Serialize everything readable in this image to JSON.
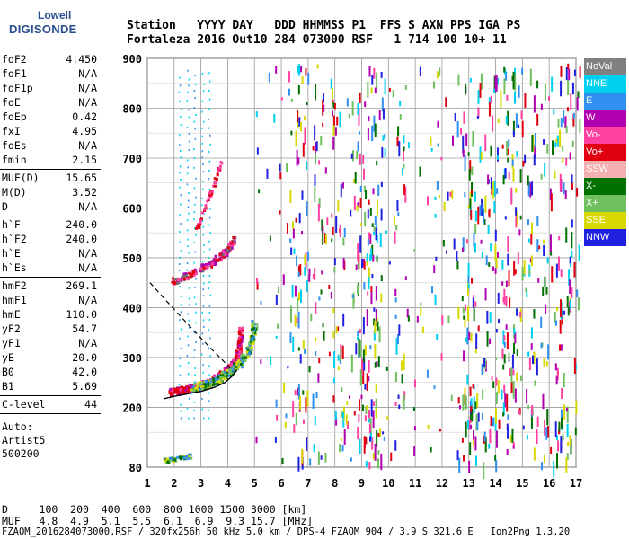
{
  "logo": {
    "line1": "Lowell",
    "line2": "DIGISONDE"
  },
  "header": {
    "line1": "Station   YYYY DAY   DDD HHMMSS P1  FFS S AXN PPS IGA PS",
    "line2": "Fortaleza 2016 Out10 284 073000 RSF   1 714 100 10+ 11"
  },
  "params_groups": [
    [
      [
        "foF2",
        "4.450"
      ],
      [
        "foF1",
        "N/A"
      ],
      [
        "foF1p",
        "N/A"
      ],
      [
        "foE",
        "N/A"
      ],
      [
        "foEp",
        "0.42"
      ],
      [
        "fxI",
        "4.95"
      ],
      [
        "foEs",
        "N/A"
      ],
      [
        "fmin",
        "2.15"
      ]
    ],
    [
      [
        "MUF(D)",
        "15.65"
      ],
      [
        "M(D)",
        "3.52"
      ],
      [
        "D",
        "N/A"
      ]
    ],
    [
      [
        "h`F",
        "240.0"
      ],
      [
        "h`F2",
        "240.0"
      ],
      [
        "h`E",
        "N/A"
      ],
      [
        "h`Es",
        "N/A"
      ]
    ],
    [
      [
        "hmF2",
        "269.1"
      ],
      [
        "hmF1",
        "N/A"
      ],
      [
        "hmE",
        "110.0"
      ],
      [
        "yF2",
        "54.7"
      ],
      [
        "yF1",
        "N/A"
      ],
      [
        "yE",
        "20.0"
      ],
      [
        "B0",
        "42.0"
      ],
      [
        "B1",
        "5.69"
      ]
    ],
    [
      [
        "C-level",
        "44"
      ]
    ]
  ],
  "auto": {
    "line1": "Auto:",
    "line2": "Artist5",
    "line3": "500200"
  },
  "legend": [
    {
      "label": "NoVal",
      "color": "#808080"
    },
    {
      "label": "NNE",
      "color": "#00d0f0"
    },
    {
      "label": "E",
      "color": "#3090f0"
    },
    {
      "label": "W",
      "color": "#b000b0"
    },
    {
      "label": "Vo-",
      "color": "#ff40a0"
    },
    {
      "label": "Vo+",
      "color": "#e00010"
    },
    {
      "label": "SSW",
      "color": "#f4b0b0"
    },
    {
      "label": "X-",
      "color": "#007000"
    },
    {
      "label": "X+",
      "color": "#70c060"
    },
    {
      "label": "SSE",
      "color": "#d8d800"
    },
    {
      "label": "NNW",
      "color": "#2020e0"
    }
  ],
  "footer": {
    "line1": "D     100  200  400  600  800 1000 1500 3000 [km]",
    "line2": "MUF   4.8  4.9  5.1  5.5  6.1  6.9  9.3 15.7 [MHz]",
    "line3": "FZAOM_2016284073000.RSF / 320fx256h 50 kHz 5.0 km / DPS-4 FZAOM 904 / 3.9 S 321.6 E   Ion2Png 1.3.20"
  },
  "chart_data": {
    "type": "scatter",
    "xlim": [
      1,
      17
    ],
    "ylim": [
      80,
      900
    ],
    "x_ticks": [
      1,
      2,
      3,
      4,
      5,
      6,
      7,
      8,
      9,
      10,
      11,
      12,
      13,
      14,
      15,
      16,
      17
    ],
    "y_ticks": [
      80,
      200,
      300,
      400,
      500,
      600,
      700,
      800,
      900
    ],
    "grid": true,
    "trace_profile": [
      [
        1.6,
        217
      ],
      [
        2.0,
        222
      ],
      [
        2.5,
        227
      ],
      [
        3.0,
        232
      ],
      [
        3.5,
        240
      ],
      [
        3.9,
        250
      ],
      [
        4.15,
        262
      ],
      [
        4.35,
        275
      ]
    ],
    "ordinary_trace": [
      [
        1.8,
        232
      ],
      [
        2.2,
        236
      ],
      [
        2.6,
        240
      ],
      [
        3.0,
        246
      ],
      [
        3.4,
        255
      ],
      [
        3.8,
        270
      ],
      [
        4.1,
        285
      ],
      [
        4.3,
        300
      ],
      [
        4.4,
        320
      ],
      [
        4.45,
        360
      ]
    ],
    "extraordinary_trace": [
      [
        2.6,
        240
      ],
      [
        3.1,
        246
      ],
      [
        3.6,
        258
      ],
      [
        4.0,
        272
      ],
      [
        4.4,
        290
      ],
      [
        4.7,
        310
      ],
      [
        4.85,
        335
      ],
      [
        4.95,
        370
      ]
    ],
    "dashed_curve": [
      [
        1.1,
        450
      ],
      [
        1.6,
        420
      ],
      [
        2.2,
        385
      ],
      [
        2.8,
        350
      ],
      [
        3.3,
        322
      ],
      [
        3.8,
        295
      ],
      [
        4.1,
        278
      ]
    ],
    "second_hop": [
      [
        1.9,
        455
      ],
      [
        2.4,
        465
      ],
      [
        2.9,
        478
      ],
      [
        3.3,
        490
      ],
      [
        3.7,
        505
      ],
      [
        4.0,
        520
      ],
      [
        4.2,
        540
      ]
    ]
  }
}
